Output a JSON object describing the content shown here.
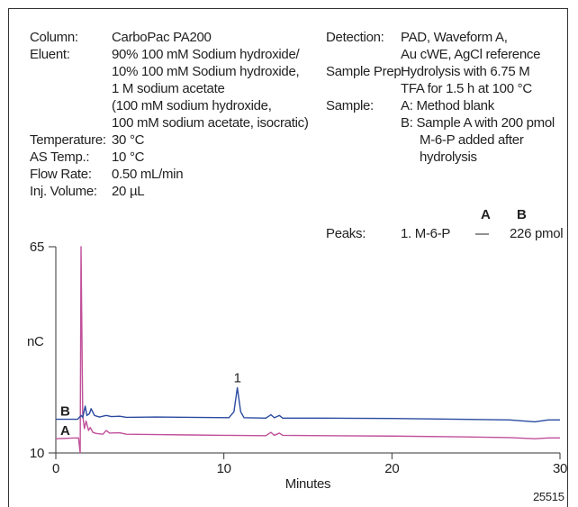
{
  "conditions": {
    "column": {
      "label": "Column:",
      "value": "CarboPac PA200"
    },
    "eluent": {
      "label": "Eluent:",
      "lines": [
        "90% 100 mM Sodium hydroxide/",
        "10% 100 mM Sodium hydroxide,",
        "1 M sodium acetate",
        "(100 mM sodium hydroxide,",
        "100 mM sodium acetate, isocratic)"
      ]
    },
    "temperature": {
      "label": "Temperature:",
      "value": "30 °C"
    },
    "as_temp": {
      "label": "AS Temp.:",
      "value": "10 °C"
    },
    "flow_rate": {
      "label": "Flow Rate:",
      "value": "0.50 mL/min"
    },
    "inj_volume": {
      "label": "Inj. Volume:",
      "value": "20 µL"
    },
    "detection": {
      "label": "Detection:",
      "lines": [
        "PAD, Waveform A,",
        "Au cWE, AgCl reference"
      ]
    },
    "sample_prep": {
      "label": "Sample Prep:",
      "lines": [
        "Hydrolysis with 6.75 M",
        "TFA for 1.5 h at 100 °C"
      ]
    },
    "sample": {
      "label": "Sample:",
      "lines": [
        "A:  Method blank",
        "B:  Sample A with 200 pmol",
        "M-6-P added after",
        "hydrolysis"
      ]
    },
    "peaks": {
      "label": "Peaks:",
      "header_a": "A",
      "header_b": "B",
      "row": {
        "name": "1. M-6-P",
        "a": "—",
        "b": "226 pmol"
      }
    }
  },
  "figure_id": "25515",
  "chart_data": {
    "type": "line",
    "title": "",
    "xlabel": "Minutes",
    "ylabel": "nC",
    "xlim": [
      0,
      30
    ],
    "ylim": [
      10,
      65
    ],
    "x_ticks": [
      0,
      10,
      20,
      30
    ],
    "y_ticks": [
      10,
      65
    ],
    "peak_annotation": {
      "label": "1",
      "x": 10.8
    },
    "series": [
      {
        "name": "A",
        "color": "#c0509a",
        "points": [
          [
            0,
            13.8
          ],
          [
            1.2,
            14.0
          ],
          [
            1.35,
            14.0
          ],
          [
            1.45,
            10.0
          ],
          [
            1.5,
            65.0
          ],
          [
            1.6,
            20.0
          ],
          [
            1.7,
            16.5
          ],
          [
            1.8,
            18.5
          ],
          [
            1.95,
            16.0
          ],
          [
            2.05,
            16.8
          ],
          [
            2.2,
            15.5
          ],
          [
            2.4,
            15.2
          ],
          [
            2.8,
            15.0
          ],
          [
            3.0,
            16.0
          ],
          [
            3.2,
            15.3
          ],
          [
            3.8,
            15.4
          ],
          [
            4.2,
            15.0
          ],
          [
            6,
            14.9
          ],
          [
            8,
            14.8
          ],
          [
            10,
            14.7
          ],
          [
            12.5,
            14.6
          ],
          [
            12.8,
            15.5
          ],
          [
            13.0,
            14.7
          ],
          [
            13.3,
            15.3
          ],
          [
            13.5,
            14.7
          ],
          [
            16,
            14.6
          ],
          [
            20,
            14.5
          ],
          [
            24,
            14.3
          ],
          [
            27,
            14.1
          ],
          [
            28.5,
            13.8
          ],
          [
            29.3,
            14.0
          ],
          [
            30,
            14.0
          ]
        ]
      },
      {
        "name": "B",
        "color": "#2a4aa0",
        "points": [
          [
            0,
            19.0
          ],
          [
            1.3,
            19.0
          ],
          [
            1.5,
            20.0
          ],
          [
            1.6,
            19.5
          ],
          [
            1.75,
            22.5
          ],
          [
            1.85,
            20.0
          ],
          [
            2.0,
            20.5
          ],
          [
            2.1,
            21.8
          ],
          [
            2.3,
            20.0
          ],
          [
            2.6,
            19.6
          ],
          [
            3.0,
            20.0
          ],
          [
            3.3,
            19.7
          ],
          [
            3.8,
            19.8
          ],
          [
            4.2,
            19.5
          ],
          [
            6,
            19.6
          ],
          [
            8,
            19.5
          ],
          [
            10.3,
            19.4
          ],
          [
            10.6,
            21.0
          ],
          [
            10.8,
            27.4
          ],
          [
            11.0,
            21.0
          ],
          [
            11.2,
            19.4
          ],
          [
            12.5,
            19.3
          ],
          [
            12.8,
            20.2
          ],
          [
            13.0,
            19.4
          ],
          [
            13.3,
            20.0
          ],
          [
            13.5,
            19.3
          ],
          [
            16,
            19.3
          ],
          [
            20,
            19.2
          ],
          [
            24,
            19.0
          ],
          [
            27,
            18.8
          ],
          [
            28.5,
            18.3
          ],
          [
            29.3,
            18.8
          ],
          [
            30,
            18.8
          ]
        ]
      }
    ],
    "series_labels": [
      "B",
      "A"
    ]
  }
}
